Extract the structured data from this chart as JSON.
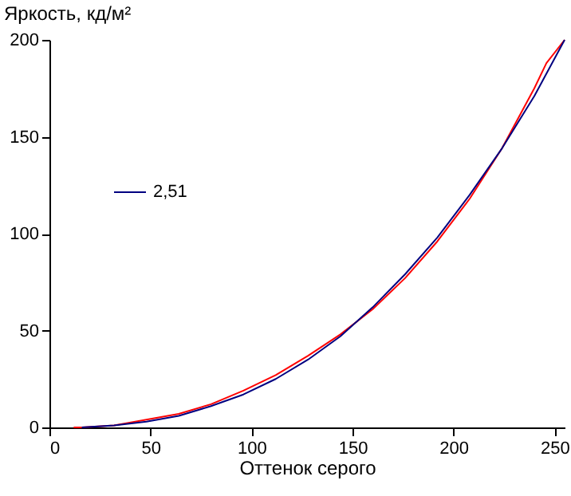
{
  "chart_data": {
    "type": "line",
    "xlabel": "Оттенок серого",
    "ylabel": "Яркость, кд/м²",
    "xlim": [
      0,
      255
    ],
    "ylim": [
      0,
      200
    ],
    "xticks": [
      0,
      50,
      100,
      150,
      200,
      250
    ],
    "yticks": [
      0,
      50,
      100,
      150,
      200
    ],
    "grid": false,
    "legend": "left",
    "marker": "none",
    "line_style": "solid",
    "series": [
      {
        "color": "#ff0000",
        "x": [
          12,
          16,
          32,
          48,
          64,
          80,
          96,
          112,
          128,
          144,
          160,
          176,
          192,
          208,
          224,
          240,
          246,
          255
        ],
        "values": [
          0,
          0,
          1,
          4,
          7,
          12,
          19,
          27,
          37,
          48,
          61,
          77,
          96,
          118,
          144,
          175,
          188,
          200
        ]
      },
      {
        "name": "2,51",
        "color": "#000080",
        "x": [
          16,
          32,
          48,
          64,
          80,
          96,
          112,
          128,
          144,
          160,
          176,
          192,
          208,
          224,
          240,
          255
        ],
        "values": [
          0,
          1,
          3,
          6,
          11,
          17,
          25,
          35,
          47,
          62,
          79,
          98,
          120,
          144,
          171,
          200
        ]
      }
    ]
  }
}
